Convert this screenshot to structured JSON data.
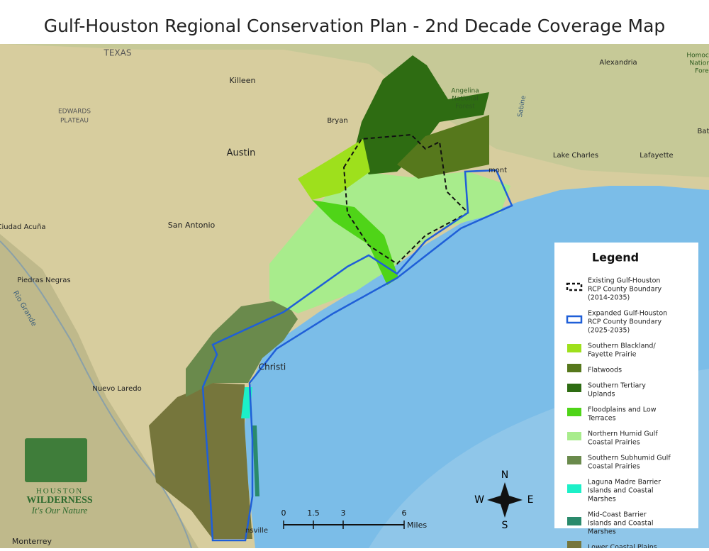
{
  "title": "Gulf-Houston Regional Conservation Plan - 2nd Decade Coverage Map",
  "legend": {
    "title": "Legend",
    "items": [
      {
        "label": [
          "Existing Gulf-Houston",
          "RCP County Boundary",
          "(2014-2035)"
        ],
        "style": "dashed",
        "color": "#111111"
      },
      {
        "label": [
          "Expanded Gulf-Houston",
          "RCP County Boundary",
          "(2025-2035)"
        ],
        "style": "outline",
        "color": "#1f5fd8"
      },
      {
        "label": [
          "Southern Blackland/",
          "Fayette Prairie"
        ],
        "style": "fill",
        "color": "#9ee01c"
      },
      {
        "label": [
          "Flatwoods"
        ],
        "style": "fill",
        "color": "#56781c"
      },
      {
        "label": [
          "Southern Tertiary",
          "Uplands"
        ],
        "style": "fill",
        "color": "#2e6c12"
      },
      {
        "label": [
          "Floodplains and Low",
          "Terraces"
        ],
        "style": "fill",
        "color": "#4fd418"
      },
      {
        "label": [
          "Northern Humid Gulf",
          "Coastal Prairies"
        ],
        "style": "fill",
        "color": "#a8ec8c"
      },
      {
        "label": [
          "Southern Subhumid Gulf",
          "Coastal Prairies"
        ],
        "style": "fill",
        "color": "#6a8a4c"
      },
      {
        "label": [
          "Laguna Madre Barrier",
          "Islands and Coastal",
          "Marshes"
        ],
        "style": "fill",
        "color": "#1cf0c8"
      },
      {
        "label": [
          "Mid-Coast Barrier",
          "Islands and Coastal",
          "Marshes"
        ],
        "style": "fill",
        "color": "#2a8a6c"
      },
      {
        "label": [
          "Lower Coastal Plains"
        ],
        "style": "fill",
        "color": "#76763c"
      }
    ]
  },
  "places": [
    "TEXAS",
    "Killeen",
    "Bryan",
    "Angelina",
    "National",
    "Forest",
    "Alexandria",
    "Homochit",
    "Nationa",
    "Fore",
    "EDWARDS",
    "PLATEAU",
    "Austin",
    "Lake Charles",
    "Lafayette",
    "Bat",
    "San Antonio",
    "Ciudad Acuña",
    "Piedras Negras",
    "Rio Grande",
    "Nuevo Laredo",
    "Christi",
    "nsville",
    "Monterrey",
    "Sabine",
    "mont"
  ],
  "scale": {
    "ticks": [
      "0",
      "1.5",
      "3",
      "6"
    ],
    "unit": "Miles"
  },
  "compass": {
    "n": "N",
    "e": "E",
    "s": "S",
    "w": "W"
  },
  "logo": {
    "line1": "HOUSTON",
    "line2": "WILDERNESS",
    "tagline": "It's Our Nature"
  }
}
